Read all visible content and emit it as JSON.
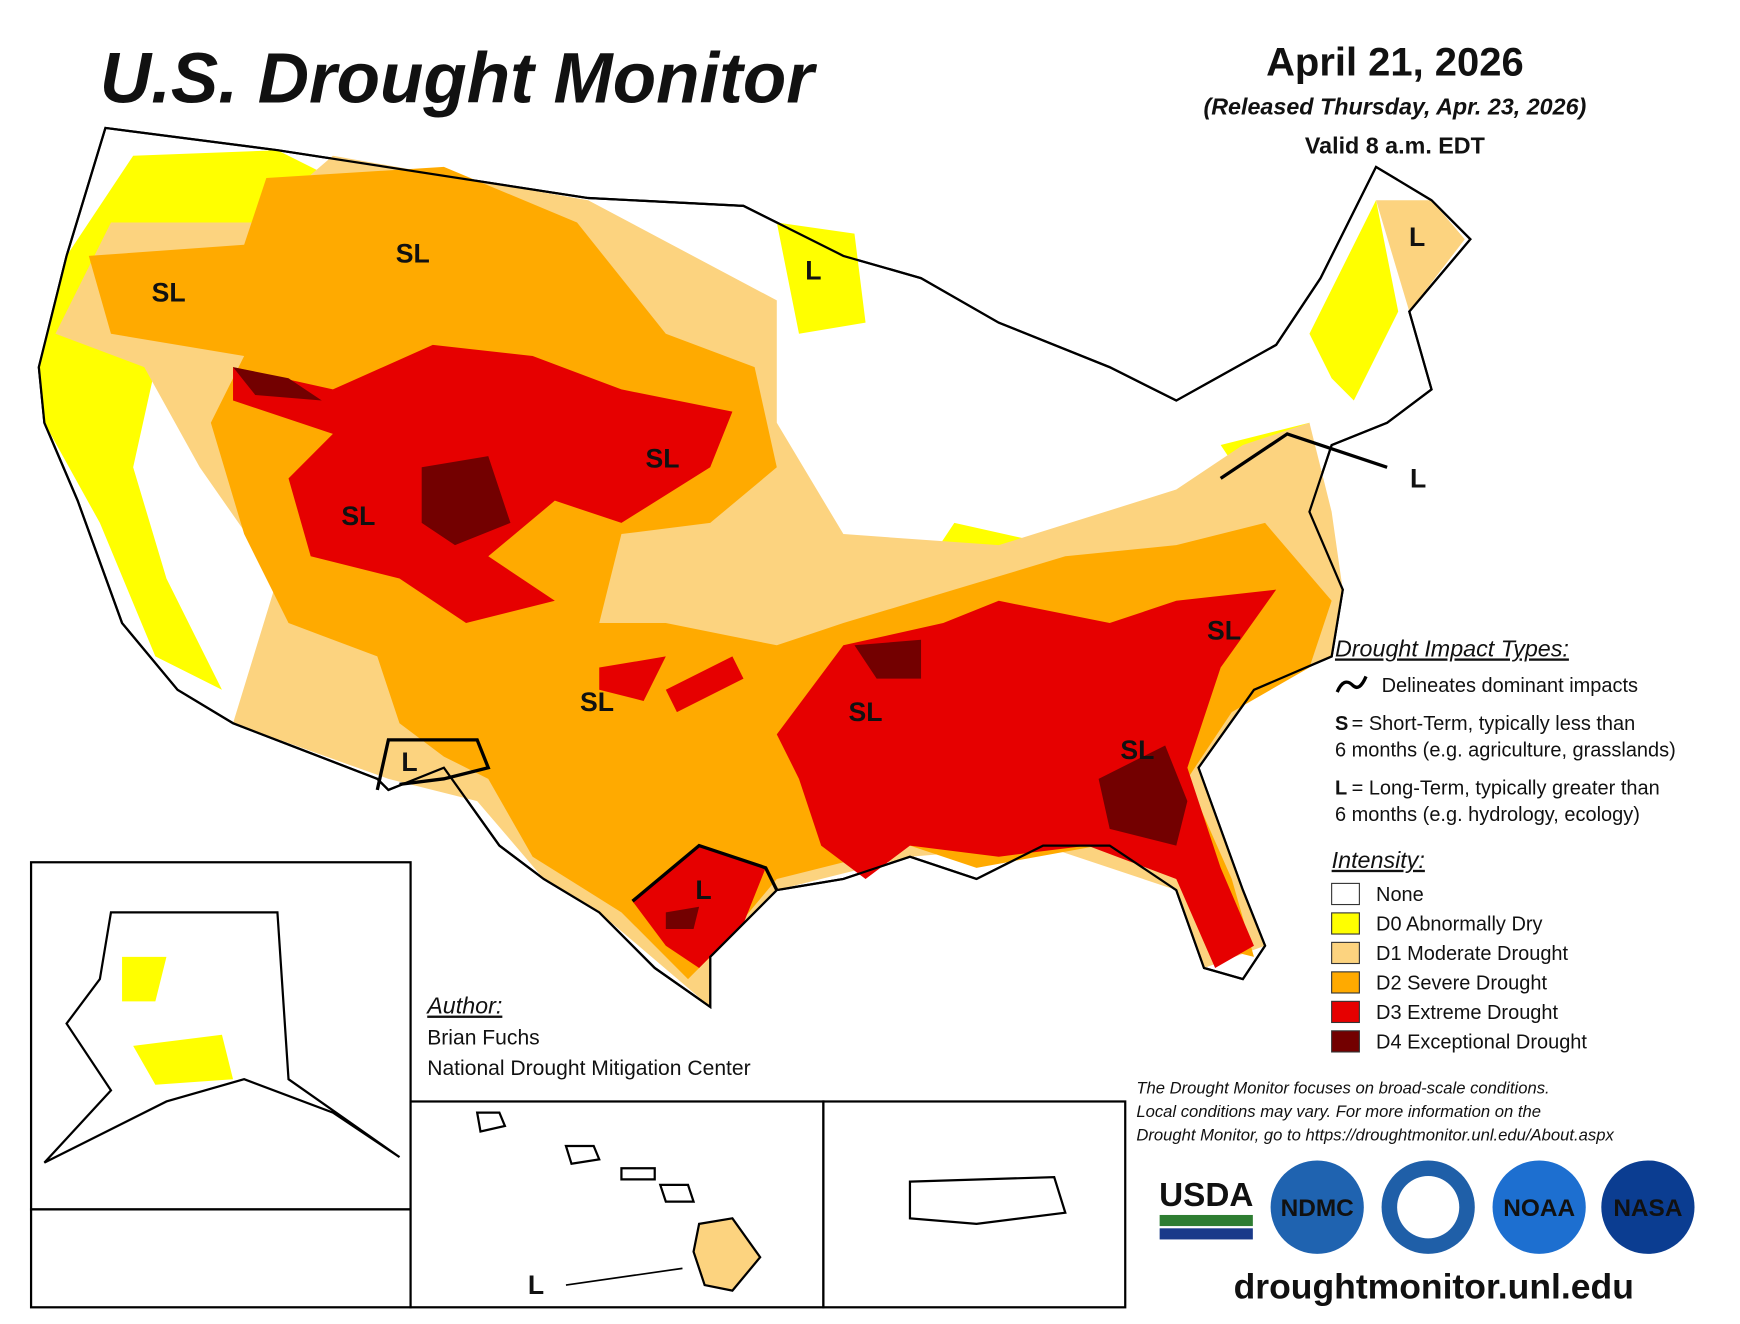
{
  "header": {
    "title": "U.S. Drought Monitor",
    "date": "April 21, 2026",
    "released": "(Released Thursday, Apr. 23, 2026)",
    "valid": "Valid 8 a.m. EDT"
  },
  "map_labels": [
    "SL",
    "SL",
    "L",
    "L",
    "SL",
    "SL",
    "L",
    "SL",
    "SL",
    "SL",
    "SL",
    "L",
    "L",
    "L"
  ],
  "impact_types": {
    "title": "Drought Impact Types:",
    "delineates": "Delineates dominant impacts",
    "items": [
      {
        "key": "S",
        "lines": [
          "= Short-Term, typically less than",
          "6 months (e.g. agriculture, grasslands)"
        ]
      },
      {
        "key": "L",
        "lines": [
          "= Long-Term, typically greater than",
          "6 months (e.g. hydrology, ecology)"
        ]
      }
    ]
  },
  "intensity": {
    "title": "Intensity:",
    "items": [
      {
        "label": "None",
        "color": "#ffffff"
      },
      {
        "label": "D0 Abnormally Dry",
        "color": "#ffff00"
      },
      {
        "label": "D1 Moderate Drought",
        "color": "#fcd37f"
      },
      {
        "label": "D2 Severe Drought",
        "color": "#ffaa00"
      },
      {
        "label": "D3 Extreme Drought",
        "color": "#e60000"
      },
      {
        "label": "D4 Exceptional Drought",
        "color": "#730000"
      }
    ]
  },
  "author": {
    "title": "Author:",
    "name": "Brian Fuchs",
    "org": "National Drought Mitigation Center"
  },
  "disclaimer": [
    "The Drought Monitor focuses on broad-scale conditions.",
    "Local conditions may vary. For more information on the",
    "Drought Monitor, go to https://droughtmonitor.unl.edu/About.aspx"
  ],
  "logos": [
    "USDA",
    "NDMC",
    "NOAA",
    "NASA"
  ],
  "url": "droughtmonitor.unl.edu"
}
